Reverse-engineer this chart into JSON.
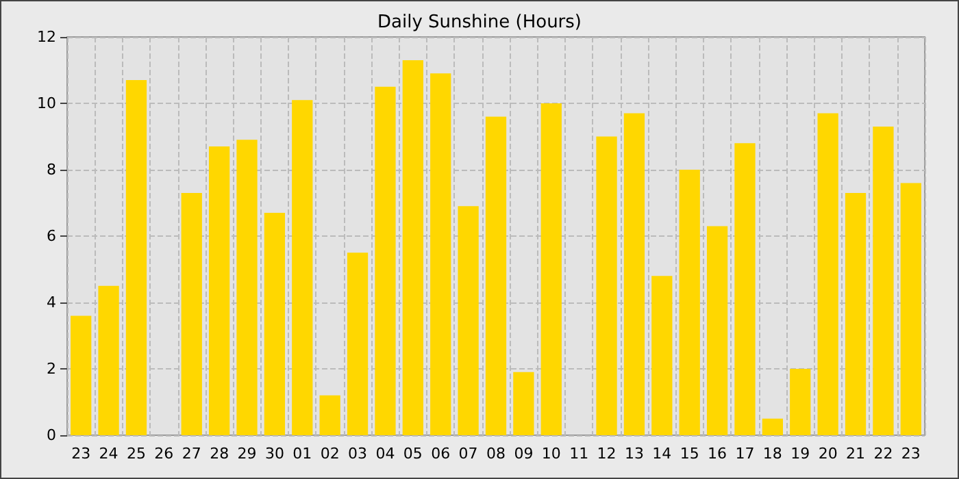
{
  "chart_data": {
    "type": "bar",
    "title": "Daily Sunshine (Hours)",
    "categories": [
      "23",
      "24",
      "25",
      "26",
      "27",
      "28",
      "29",
      "30",
      "01",
      "02",
      "03",
      "04",
      "05",
      "06",
      "07",
      "08",
      "09",
      "10",
      "11",
      "12",
      "13",
      "14",
      "15",
      "16",
      "17",
      "18",
      "19",
      "20",
      "21",
      "22",
      "23"
    ],
    "values": [
      3.6,
      4.5,
      10.7,
      0,
      7.3,
      8.7,
      8.9,
      6.7,
      10.1,
      1.2,
      5.5,
      10.5,
      11.3,
      10.9,
      6.9,
      9.6,
      1.9,
      10.0,
      0,
      9.0,
      9.7,
      4.8,
      8.0,
      6.3,
      8.8,
      0.5,
      2.0,
      9.7,
      7.3,
      9.3,
      7.6
    ],
    "color": "#ffd700",
    "ylim": [
      0,
      12
    ],
    "yticks": [
      0,
      2,
      4,
      6,
      8,
      10,
      12
    ],
    "grid": true
  }
}
